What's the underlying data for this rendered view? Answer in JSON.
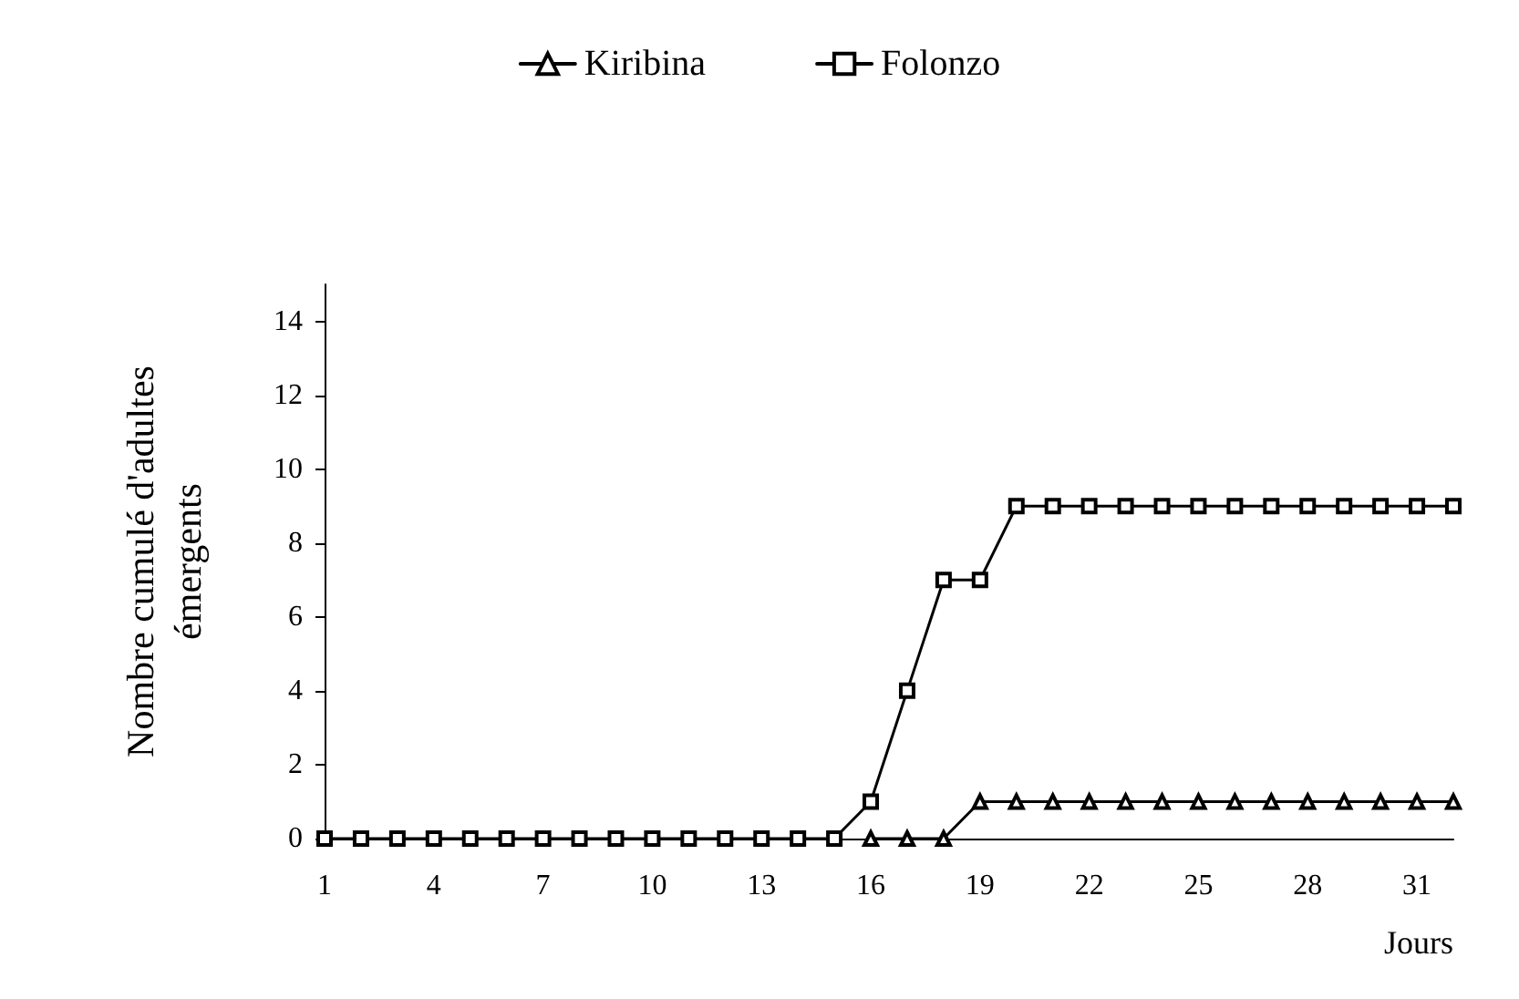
{
  "chart_data": {
    "type": "line",
    "xlabel": "Jours",
    "ylabel": "Nombre cumulé d'adultes\némergents",
    "categories": [
      "1",
      null,
      null,
      "4",
      null,
      null,
      "7",
      null,
      null,
      "10",
      null,
      null,
      "13",
      null,
      null,
      "16",
      null,
      null,
      "19",
      null,
      null,
      "22",
      null,
      null,
      "25",
      null,
      null,
      "28",
      null,
      null,
      "31",
      null
    ],
    "series": [
      {
        "name": "Kiribina",
        "color": "#000000",
        "marker": "triangle",
        "values": [
          null,
          null,
          null,
          null,
          null,
          null,
          null,
          null,
          null,
          null,
          null,
          null,
          null,
          null,
          null,
          0,
          0,
          0,
          1,
          1,
          1,
          1,
          1,
          1,
          1,
          1,
          1,
          1,
          1,
          1,
          1,
          1
        ]
      },
      {
        "name": "Folonzo",
        "color": "#000000",
        "marker": "square",
        "values": [
          0,
          0,
          0,
          0,
          0,
          0,
          0,
          0,
          0,
          0,
          0,
          0,
          0,
          0,
          0,
          1,
          4,
          7,
          7,
          9,
          9,
          9,
          9,
          9,
          9,
          9,
          9,
          9,
          9,
          9,
          9,
          9
        ]
      }
    ],
    "ylim": [
      0,
      15
    ],
    "yticks": [
      0,
      2,
      4,
      6,
      8,
      10,
      12,
      14
    ],
    "grid": false,
    "legend": "top",
    "line_style": "solid"
  }
}
